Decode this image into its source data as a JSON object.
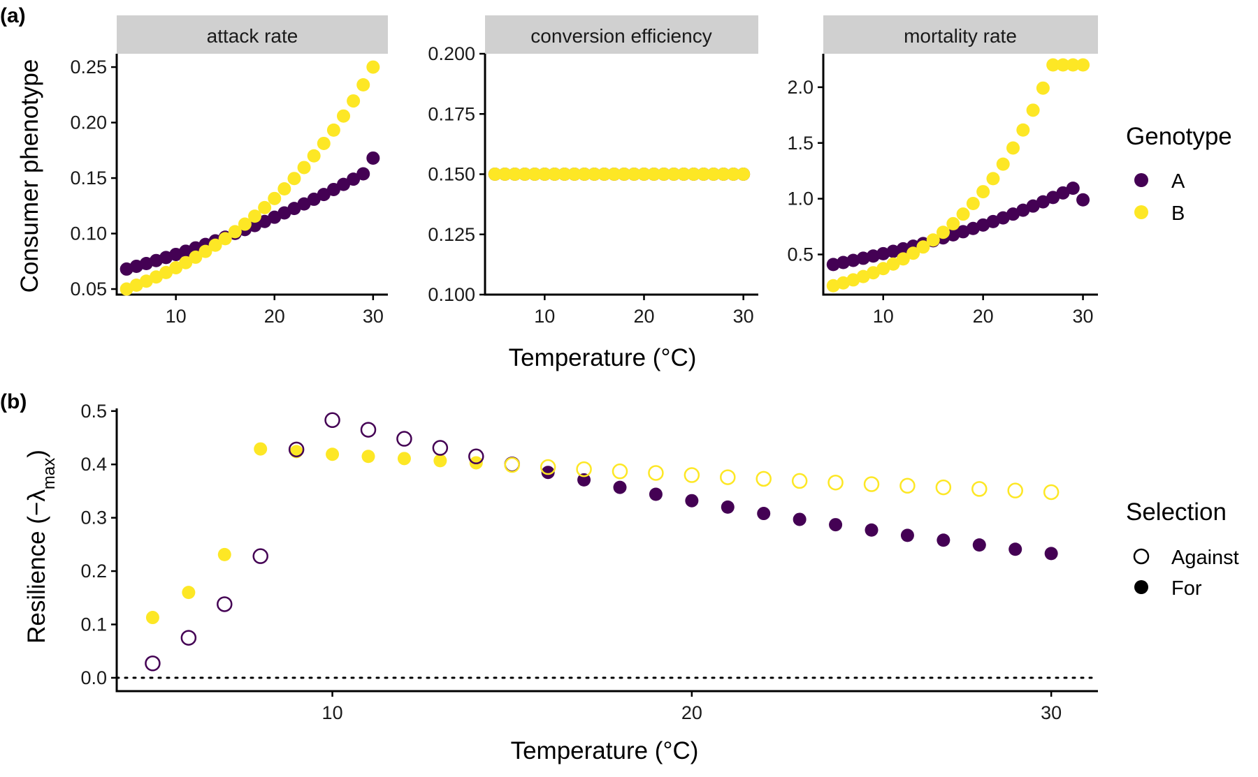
{
  "colors": {
    "A": "#440154",
    "B": "#FDE725",
    "zero_line": "#000000"
  },
  "panel_labels": [
    "(a)",
    "(b)"
  ],
  "chart_data": [
    {
      "type": "scatter",
      "panel": "(a)",
      "facet_variable": "Consumer phenotype",
      "ylabel": "Consumer phenotype",
      "xlabel": "Temperature (°C)",
      "legend": {
        "title": "Genotype",
        "entries": [
          "A",
          "B"
        ],
        "placement": "right"
      },
      "grid": false,
      "x_ticks": [
        10,
        20,
        30
      ],
      "xlim": [
        4,
        31.5
      ],
      "facets": [
        {
          "title": "attack rate",
          "ylim": [
            0.045,
            0.262
          ],
          "y_ticks": [
            "0.05",
            "0.10",
            "0.15",
            "0.20",
            "0.25"
          ],
          "x": [
            5,
            6,
            7,
            8,
            9,
            10,
            11,
            12,
            13,
            14,
            15,
            16,
            17,
            18,
            19,
            20,
            21,
            22,
            23,
            24,
            25,
            26,
            27,
            28,
            29,
            30
          ],
          "series": [
            {
              "name": "A",
              "values": [
                0.068,
                0.0705,
                0.073,
                0.0757,
                0.0784,
                0.0812,
                0.0841,
                0.0871,
                0.0902,
                0.0934,
                0.0967,
                0.1001,
                0.1036,
                0.1072,
                0.1109,
                0.1147,
                0.1186,
                0.1226,
                0.1267,
                0.1309,
                0.1352,
                0.1397,
                0.1443,
                0.149,
                0.1538,
                0.168
              ]
            },
            {
              "name": "B",
              "values": [
                0.05,
                0.0535,
                0.0571,
                0.0609,
                0.0649,
                0.0692,
                0.0738,
                0.0787,
                0.0839,
                0.0895,
                0.0954,
                0.1017,
                0.1085,
                0.1157,
                0.1234,
                0.1316,
                0.1403,
                0.1496,
                0.1595,
                0.17,
                0.1812,
                0.1932,
                0.2059,
                0.2195,
                0.234,
                0.25
              ]
            }
          ]
        },
        {
          "title": "conversion efficiency",
          "ylim": [
            0.1,
            0.2
          ],
          "y_ticks": [
            "0.100",
            "0.125",
            "0.150",
            "0.175",
            "0.200"
          ],
          "x": [
            5,
            6,
            7,
            8,
            9,
            10,
            11,
            12,
            13,
            14,
            15,
            16,
            17,
            18,
            19,
            20,
            21,
            22,
            23,
            24,
            25,
            26,
            27,
            28,
            29,
            30
          ],
          "series": [
            {
              "name": "A",
              "values": [
                0.15,
                0.15,
                0.15,
                0.15,
                0.15,
                0.15,
                0.15,
                0.15,
                0.15,
                0.15,
                0.15,
                0.15,
                0.15,
                0.15,
                0.15,
                0.15,
                0.15,
                0.15,
                0.15,
                0.15,
                0.15,
                0.15,
                0.15,
                0.15,
                0.15,
                0.15
              ]
            },
            {
              "name": "B",
              "values": [
                0.15,
                0.15,
                0.15,
                0.15,
                0.15,
                0.15,
                0.15,
                0.15,
                0.15,
                0.15,
                0.15,
                0.15,
                0.15,
                0.15,
                0.15,
                0.15,
                0.15,
                0.15,
                0.15,
                0.15,
                0.15,
                0.15,
                0.15,
                0.15,
                0.15,
                0.15
              ]
            }
          ]
        },
        {
          "title": "mortality rate",
          "ylim": [
            0.14,
            2.3
          ],
          "y_ticks": [
            "0.5",
            "1.0",
            "1.5",
            "2.0"
          ],
          "x": [
            5,
            6,
            7,
            8,
            9,
            10,
            11,
            12,
            13,
            14,
            15,
            16,
            17,
            18,
            19,
            20,
            21,
            22,
            23,
            24,
            25,
            26,
            27,
            28,
            29,
            30
          ],
          "series": [
            {
              "name": "A",
              "values": [
                0.41,
                0.428,
                0.447,
                0.466,
                0.486,
                0.507,
                0.528,
                0.551,
                0.574,
                0.598,
                0.623,
                0.649,
                0.676,
                0.704,
                0.733,
                0.764,
                0.795,
                0.828,
                0.862,
                0.897,
                0.934,
                0.972,
                1.011,
                1.052,
                1.094,
                0.99
              ]
            },
            {
              "name": "B",
              "values": [
                0.22,
                0.245,
                0.272,
                0.302,
                0.336,
                0.373,
                0.414,
                0.46,
                0.511,
                0.567,
                0.63,
                0.699,
                0.776,
                0.862,
                0.957,
                1.063,
                1.18,
                1.31,
                1.455,
                1.616,
                1.794,
                1.992,
                2.2,
                2.2,
                2.2,
                2.2
              ]
            }
          ]
        }
      ]
    },
    {
      "type": "scatter",
      "panel": "(b)",
      "ylabel": "Resilience (−λmax)",
      "xlabel": "Temperature (°C)",
      "xlim": [
        4,
        31.3
      ],
      "ylim": [
        -0.025,
        0.505
      ],
      "x_ticks": [
        10,
        20,
        30
      ],
      "y_ticks": [
        "0.0",
        "0.1",
        "0.2",
        "0.3",
        "0.4",
        "0.5"
      ],
      "grid": false,
      "reference_line": {
        "y": 0.0,
        "style": "dotted"
      },
      "legend": {
        "title": "Selection",
        "entries": [
          "Against",
          "For"
        ],
        "placement": "right"
      },
      "points": [
        {
          "x": 5,
          "y": 0.027,
          "genotype": "A",
          "selection": "Against"
        },
        {
          "x": 6,
          "y": 0.075,
          "genotype": "A",
          "selection": "Against"
        },
        {
          "x": 7,
          "y": 0.138,
          "genotype": "A",
          "selection": "Against"
        },
        {
          "x": 8,
          "y": 0.228,
          "genotype": "A",
          "selection": "Against"
        },
        {
          "x": 9,
          "y": 0.428,
          "genotype": "A",
          "selection": "Against"
        },
        {
          "x": 10,
          "y": 0.483,
          "genotype": "A",
          "selection": "Against"
        },
        {
          "x": 11,
          "y": 0.465,
          "genotype": "A",
          "selection": "Against"
        },
        {
          "x": 12,
          "y": 0.448,
          "genotype": "A",
          "selection": "Against"
        },
        {
          "x": 13,
          "y": 0.431,
          "genotype": "A",
          "selection": "Against"
        },
        {
          "x": 14,
          "y": 0.415,
          "genotype": "A",
          "selection": "Against"
        },
        {
          "x": 15,
          "y": 0.4,
          "genotype": "A",
          "selection": "Against"
        },
        {
          "x": 16,
          "y": 0.385,
          "genotype": "A",
          "selection": "For"
        },
        {
          "x": 17,
          "y": 0.371,
          "genotype": "A",
          "selection": "For"
        },
        {
          "x": 18,
          "y": 0.357,
          "genotype": "A",
          "selection": "For"
        },
        {
          "x": 19,
          "y": 0.344,
          "genotype": "A",
          "selection": "For"
        },
        {
          "x": 20,
          "y": 0.332,
          "genotype": "A",
          "selection": "For"
        },
        {
          "x": 21,
          "y": 0.32,
          "genotype": "A",
          "selection": "For"
        },
        {
          "x": 22,
          "y": 0.308,
          "genotype": "A",
          "selection": "For"
        },
        {
          "x": 23,
          "y": 0.297,
          "genotype": "A",
          "selection": "For"
        },
        {
          "x": 24,
          "y": 0.287,
          "genotype": "A",
          "selection": "For"
        },
        {
          "x": 25,
          "y": 0.277,
          "genotype": "A",
          "selection": "For"
        },
        {
          "x": 26,
          "y": 0.267,
          "genotype": "A",
          "selection": "For"
        },
        {
          "x": 27,
          "y": 0.258,
          "genotype": "A",
          "selection": "For"
        },
        {
          "x": 28,
          "y": 0.249,
          "genotype": "A",
          "selection": "For"
        },
        {
          "x": 29,
          "y": 0.241,
          "genotype": "A",
          "selection": "For"
        },
        {
          "x": 30,
          "y": 0.233,
          "genotype": "A",
          "selection": "For"
        },
        {
          "x": 5,
          "y": 0.113,
          "genotype": "B",
          "selection": "For"
        },
        {
          "x": 6,
          "y": 0.16,
          "genotype": "B",
          "selection": "For"
        },
        {
          "x": 7,
          "y": 0.231,
          "genotype": "B",
          "selection": "For"
        },
        {
          "x": 8,
          "y": 0.429,
          "genotype": "B",
          "selection": "For"
        },
        {
          "x": 9,
          "y": 0.424,
          "genotype": "B",
          "selection": "For"
        },
        {
          "x": 10,
          "y": 0.419,
          "genotype": "B",
          "selection": "For"
        },
        {
          "x": 11,
          "y": 0.415,
          "genotype": "B",
          "selection": "For"
        },
        {
          "x": 12,
          "y": 0.411,
          "genotype": "B",
          "selection": "For"
        },
        {
          "x": 13,
          "y": 0.407,
          "genotype": "B",
          "selection": "For"
        },
        {
          "x": 14,
          "y": 0.403,
          "genotype": "B",
          "selection": "For"
        },
        {
          "x": 15,
          "y": 0.399,
          "genotype": "B",
          "selection": "Against"
        },
        {
          "x": 16,
          "y": 0.395,
          "genotype": "B",
          "selection": "Against"
        },
        {
          "x": 17,
          "y": 0.391,
          "genotype": "B",
          "selection": "Against"
        },
        {
          "x": 18,
          "y": 0.387,
          "genotype": "B",
          "selection": "Against"
        },
        {
          "x": 19,
          "y": 0.384,
          "genotype": "B",
          "selection": "Against"
        },
        {
          "x": 20,
          "y": 0.38,
          "genotype": "B",
          "selection": "Against"
        },
        {
          "x": 21,
          "y": 0.376,
          "genotype": "B",
          "selection": "Against"
        },
        {
          "x": 22,
          "y": 0.373,
          "genotype": "B",
          "selection": "Against"
        },
        {
          "x": 23,
          "y": 0.369,
          "genotype": "B",
          "selection": "Against"
        },
        {
          "x": 24,
          "y": 0.366,
          "genotype": "B",
          "selection": "Against"
        },
        {
          "x": 25,
          "y": 0.363,
          "genotype": "B",
          "selection": "Against"
        },
        {
          "x": 26,
          "y": 0.36,
          "genotype": "B",
          "selection": "Against"
        },
        {
          "x": 27,
          "y": 0.357,
          "genotype": "B",
          "selection": "Against"
        },
        {
          "x": 28,
          "y": 0.354,
          "genotype": "B",
          "selection": "Against"
        },
        {
          "x": 29,
          "y": 0.351,
          "genotype": "B",
          "selection": "Against"
        },
        {
          "x": 30,
          "y": 0.348,
          "genotype": "B",
          "selection": "Against"
        }
      ]
    }
  ]
}
